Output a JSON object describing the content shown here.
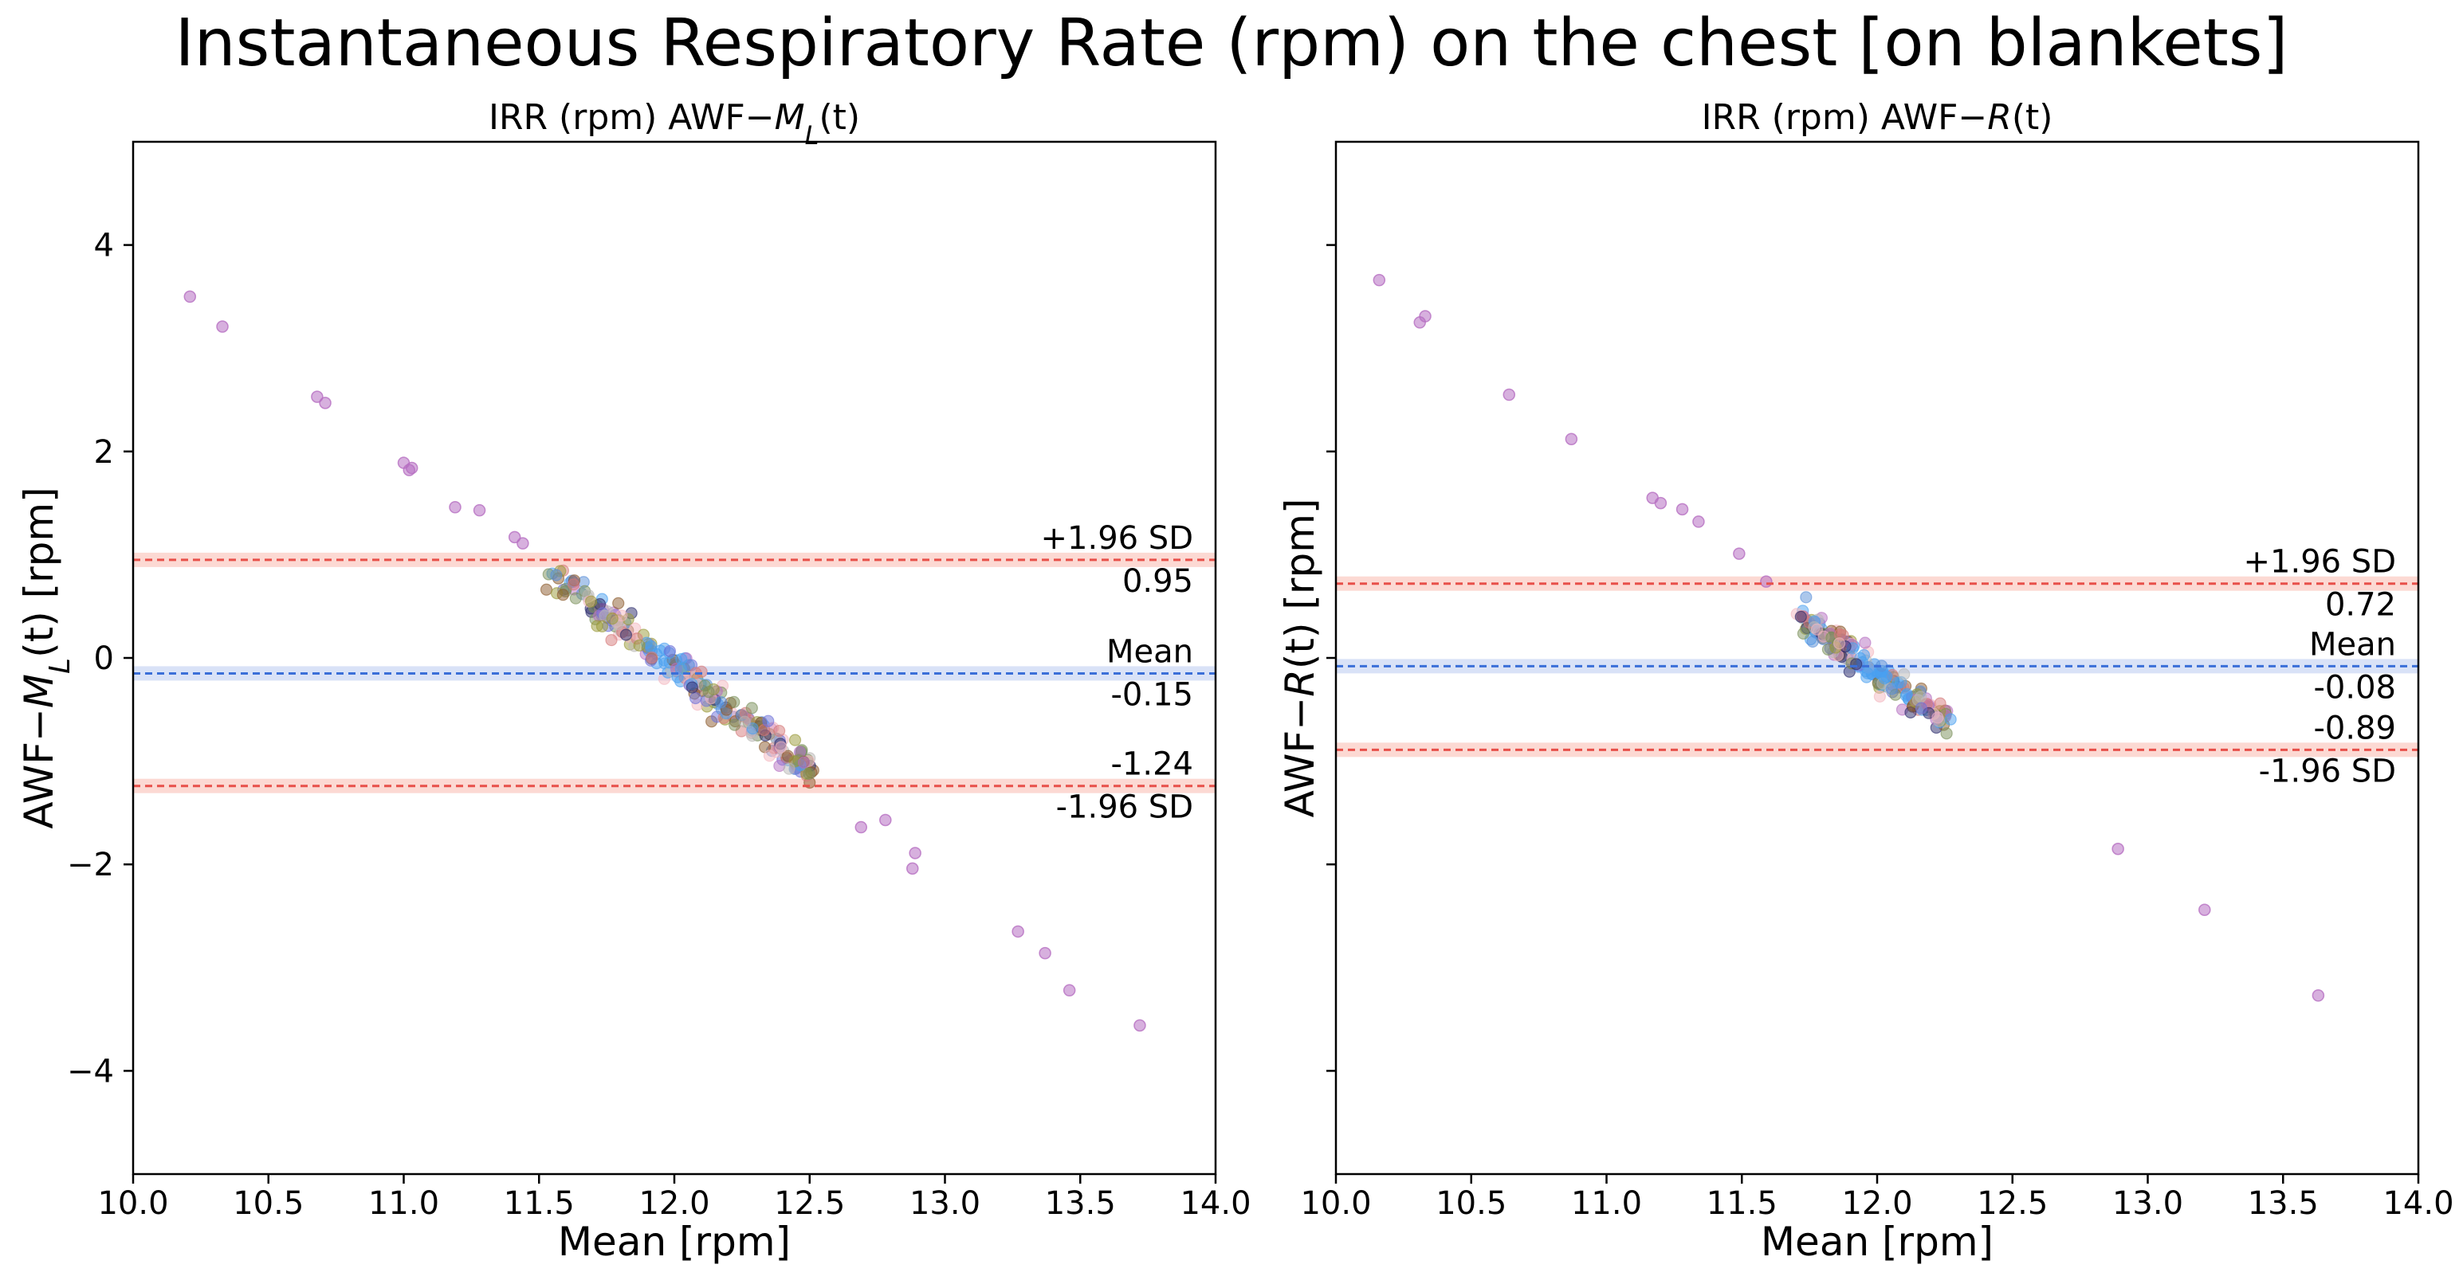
{
  "figure_title": "Instantaneous Respiratory Rate (rpm) on the chest [on blankets]",
  "colors": {
    "limit_line": "#e8504a",
    "limit_band": "#fbc9c0",
    "mean_line": "#3b6fd8",
    "mean_band": "#c9d6f3",
    "outlier_points": "#b66fc2",
    "cluster_palette": [
      "#b9b8b6",
      "#9a9a38",
      "#8b5a2b",
      "#d57a7a",
      "#b66fc2",
      "#6d6fd8",
      "#5a8fd8",
      "#f4b8c0",
      "#7a8f5a",
      "#2a2a6a",
      "#4aa0f0"
    ]
  },
  "chart_data": [
    {
      "type": "scatter",
      "title_prefix": "IRR (rpm) AWF−",
      "title_var": "M",
      "title_sub": "L",
      "title_suffix": "(t)",
      "xlabel": "Mean [rpm]",
      "ylabel_prefix": "AWF−",
      "ylabel_var": "M",
      "ylabel_sub": "L",
      "ylabel_suffix": "(t) [rpm]",
      "xlim": [
        10.0,
        14.0
      ],
      "ylim": [
        -5,
        5
      ],
      "xticks": [
        "10.0",
        "10.5",
        "11.0",
        "11.5",
        "12.0",
        "12.5",
        "13.0",
        "13.5",
        "14.0"
      ],
      "yticks": [
        "−4",
        "−2",
        "0",
        "2",
        "4"
      ],
      "ytick_values": [
        -4,
        -2,
        0,
        2,
        4
      ],
      "mean": -0.15,
      "upper_loa": 0.95,
      "lower_loa": -1.24,
      "labels": {
        "upper": "+1.96 SD",
        "upper_value": "0.95",
        "mean": "Mean",
        "mean_value": "-0.15",
        "lower_value": "-1.24",
        "lower": "-1.96 SD"
      },
      "outliers": [
        [
          10.21,
          3.5
        ],
        [
          10.33,
          3.21
        ],
        [
          10.68,
          2.53
        ],
        [
          10.71,
          2.47
        ],
        [
          11.0,
          1.89
        ],
        [
          11.02,
          1.82
        ],
        [
          11.03,
          1.84
        ],
        [
          11.19,
          1.46
        ],
        [
          11.28,
          1.43
        ],
        [
          11.41,
          1.17
        ],
        [
          11.44,
          1.11
        ],
        [
          12.69,
          -1.64
        ],
        [
          12.78,
          -1.57
        ],
        [
          12.88,
          -2.04
        ],
        [
          12.89,
          -1.89
        ],
        [
          13.27,
          -2.65
        ],
        [
          13.37,
          -2.86
        ],
        [
          13.46,
          -3.22
        ],
        [
          13.72,
          -3.56
        ]
      ],
      "cluster": {
        "x_range": [
          11.55,
          12.52
        ],
        "slope": -2.0,
        "x_center": 11.98,
        "y_center": -0.05,
        "spread": 0.11,
        "count": 240
      }
    },
    {
      "type": "scatter",
      "title_prefix": "IRR (rpm) AWF−",
      "title_var": "R",
      "title_sub": "",
      "title_suffix": "(t)",
      "xlabel": "Mean [rpm]",
      "ylabel_prefix": "AWF−",
      "ylabel_var": "R",
      "ylabel_sub": "",
      "ylabel_suffix": "(t) [rpm]",
      "xlim": [
        10.0,
        14.0
      ],
      "ylim": [
        -5,
        5
      ],
      "xticks": [
        "10.0",
        "10.5",
        "11.0",
        "11.5",
        "12.0",
        "12.5",
        "13.0",
        "13.5",
        "14.0"
      ],
      "yticks": [],
      "ytick_values": [
        -4,
        -2,
        0,
        2,
        4
      ],
      "mean": -0.08,
      "upper_loa": 0.72,
      "lower_loa": -0.89,
      "labels": {
        "upper": "+1.96 SD",
        "upper_value": "0.72",
        "mean": "Mean",
        "mean_value": "-0.08",
        "lower_value": "-0.89",
        "lower": "-1.96 SD"
      },
      "outliers": [
        [
          10.16,
          3.66
        ],
        [
          10.31,
          3.25
        ],
        [
          10.33,
          3.31
        ],
        [
          10.64,
          2.55
        ],
        [
          10.87,
          2.12
        ],
        [
          11.17,
          1.55
        ],
        [
          11.2,
          1.5
        ],
        [
          11.28,
          1.44
        ],
        [
          11.34,
          1.32
        ],
        [
          11.49,
          1.01
        ],
        [
          11.59,
          0.74
        ],
        [
          12.89,
          -1.85
        ],
        [
          13.21,
          -2.44
        ],
        [
          13.63,
          -3.27
        ]
      ],
      "cluster": {
        "x_range": [
          11.72,
          12.26
        ],
        "slope": -1.9,
        "x_center": 11.98,
        "y_center": -0.1,
        "spread": 0.1,
        "count": 200
      }
    }
  ]
}
